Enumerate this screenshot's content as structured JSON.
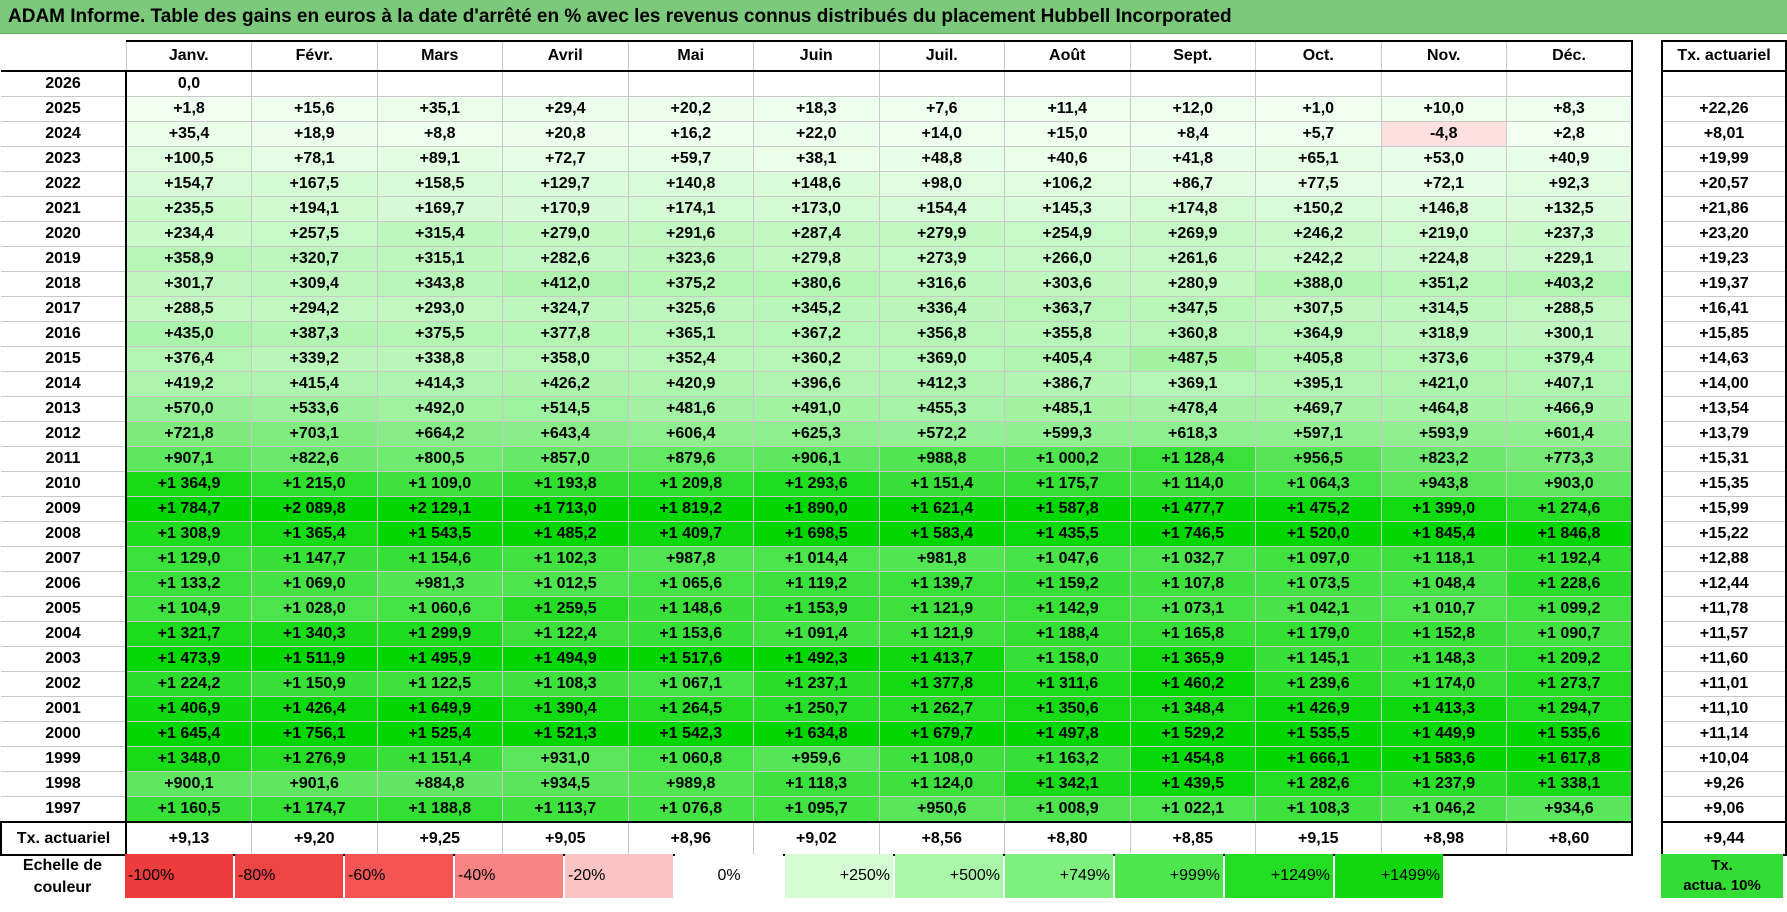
{
  "title": "ADAM Informe. Table des gains en euros à la date d'arrêté en % avec les revenus connus distribués du placement Hubbell Incorporated",
  "months": [
    "Janv.",
    "Févr.",
    "Mars",
    "Avril",
    "Mai",
    "Juin",
    "Juil.",
    "Août",
    "Sept.",
    "Oct.",
    "Nov.",
    "Déc."
  ],
  "tx_header": "Tx. actuariel",
  "rows": [
    {
      "year": "2026",
      "values": [
        "0,0",
        "",
        "",
        "",
        "",
        "",
        "",
        "",
        "",
        "",
        "",
        ""
      ],
      "tx": ""
    },
    {
      "year": "2025",
      "values": [
        "+1,8",
        "+15,6",
        "+35,1",
        "+29,4",
        "+20,2",
        "+18,3",
        "+7,6",
        "+11,4",
        "+12,0",
        "+1,0",
        "+10,0",
        "+8,3"
      ],
      "tx": "+22,26"
    },
    {
      "year": "2024",
      "values": [
        "+35,4",
        "+18,9",
        "+8,8",
        "+20,8",
        "+16,2",
        "+22,0",
        "+14,0",
        "+15,0",
        "+8,4",
        "+5,7",
        "-4,8",
        "+2,8"
      ],
      "tx": "+8,01"
    },
    {
      "year": "2023",
      "values": [
        "+100,5",
        "+78,1",
        "+89,1",
        "+72,7",
        "+59,7",
        "+38,1",
        "+48,8",
        "+40,6",
        "+41,8",
        "+65,1",
        "+53,0",
        "+40,9"
      ],
      "tx": "+19,99"
    },
    {
      "year": "2022",
      "values": [
        "+154,7",
        "+167,5",
        "+158,5",
        "+129,7",
        "+140,8",
        "+148,6",
        "+98,0",
        "+106,2",
        "+86,7",
        "+77,5",
        "+72,1",
        "+92,3"
      ],
      "tx": "+20,57"
    },
    {
      "year": "2021",
      "values": [
        "+235,5",
        "+194,1",
        "+169,7",
        "+170,9",
        "+174,1",
        "+173,0",
        "+154,4",
        "+145,3",
        "+174,8",
        "+150,2",
        "+146,8",
        "+132,5"
      ],
      "tx": "+21,86"
    },
    {
      "year": "2020",
      "values": [
        "+234,4",
        "+257,5",
        "+315,4",
        "+279,0",
        "+291,6",
        "+287,4",
        "+279,9",
        "+254,9",
        "+269,9",
        "+246,2",
        "+219,0",
        "+237,3"
      ],
      "tx": "+23,20"
    },
    {
      "year": "2019",
      "values": [
        "+358,9",
        "+320,7",
        "+315,1",
        "+282,6",
        "+323,6",
        "+279,8",
        "+273,9",
        "+266,0",
        "+261,6",
        "+242,2",
        "+224,8",
        "+229,1"
      ],
      "tx": "+19,23"
    },
    {
      "year": "2018",
      "values": [
        "+301,7",
        "+309,4",
        "+343,8",
        "+412,0",
        "+375,2",
        "+380,6",
        "+316,6",
        "+303,6",
        "+280,9",
        "+388,0",
        "+351,2",
        "+403,2"
      ],
      "tx": "+19,37"
    },
    {
      "year": "2017",
      "values": [
        "+288,5",
        "+294,2",
        "+293,0",
        "+324,7",
        "+325,6",
        "+345,2",
        "+336,4",
        "+363,7",
        "+347,5",
        "+307,5",
        "+314,5",
        "+288,5"
      ],
      "tx": "+16,41"
    },
    {
      "year": "2016",
      "values": [
        "+435,0",
        "+387,3",
        "+375,5",
        "+377,8",
        "+365,1",
        "+367,2",
        "+356,8",
        "+355,8",
        "+360,8",
        "+364,9",
        "+318,9",
        "+300,1"
      ],
      "tx": "+15,85"
    },
    {
      "year": "2015",
      "values": [
        "+376,4",
        "+339,2",
        "+338,8",
        "+358,0",
        "+352,4",
        "+360,2",
        "+369,0",
        "+405,4",
        "+487,5",
        "+405,8",
        "+373,6",
        "+379,4"
      ],
      "tx": "+14,63"
    },
    {
      "year": "2014",
      "values": [
        "+419,2",
        "+415,4",
        "+414,3",
        "+426,2",
        "+420,9",
        "+396,6",
        "+412,3",
        "+386,7",
        "+369,1",
        "+395,1",
        "+421,0",
        "+407,1"
      ],
      "tx": "+14,00"
    },
    {
      "year": "2013",
      "values": [
        "+570,0",
        "+533,6",
        "+492,0",
        "+514,5",
        "+481,6",
        "+491,0",
        "+455,3",
        "+485,1",
        "+478,4",
        "+469,7",
        "+464,8",
        "+466,9"
      ],
      "tx": "+13,54"
    },
    {
      "year": "2012",
      "values": [
        "+721,8",
        "+703,1",
        "+664,2",
        "+643,4",
        "+606,4",
        "+625,3",
        "+572,2",
        "+599,3",
        "+618,3",
        "+597,1",
        "+593,9",
        "+601,4"
      ],
      "tx": "+13,79"
    },
    {
      "year": "2011",
      "values": [
        "+907,1",
        "+822,6",
        "+800,5",
        "+857,0",
        "+879,6",
        "+906,1",
        "+988,8",
        "+1 000,2",
        "+1 128,4",
        "+956,5",
        "+823,2",
        "+773,3"
      ],
      "tx": "+15,31"
    },
    {
      "year": "2010",
      "values": [
        "+1 364,9",
        "+1 215,0",
        "+1 109,0",
        "+1 193,8",
        "+1 209,8",
        "+1 293,6",
        "+1 151,4",
        "+1 175,7",
        "+1 114,0",
        "+1 064,3",
        "+943,8",
        "+903,0"
      ],
      "tx": "+15,35"
    },
    {
      "year": "2009",
      "values": [
        "+1 784,7",
        "+2 089,8",
        "+2 129,1",
        "+1 713,0",
        "+1 819,2",
        "+1 890,0",
        "+1 621,4",
        "+1 587,8",
        "+1 477,7",
        "+1 475,2",
        "+1 399,0",
        "+1 274,6"
      ],
      "tx": "+15,99"
    },
    {
      "year": "2008",
      "values": [
        "+1 308,9",
        "+1 365,4",
        "+1 543,5",
        "+1 485,2",
        "+1 409,7",
        "+1 698,5",
        "+1 583,4",
        "+1 435,5",
        "+1 746,5",
        "+1 520,0",
        "+1 845,4",
        "+1 846,8"
      ],
      "tx": "+15,22"
    },
    {
      "year": "2007",
      "values": [
        "+1 129,0",
        "+1 147,7",
        "+1 154,6",
        "+1 102,3",
        "+987,8",
        "+1 014,4",
        "+981,8",
        "+1 047,6",
        "+1 032,7",
        "+1 097,0",
        "+1 118,1",
        "+1 192,4"
      ],
      "tx": "+12,88"
    },
    {
      "year": "2006",
      "values": [
        "+1 133,2",
        "+1 069,0",
        "+981,3",
        "+1 012,5",
        "+1 065,6",
        "+1 119,2",
        "+1 139,7",
        "+1 159,2",
        "+1 107,8",
        "+1 073,5",
        "+1 048,4",
        "+1 228,6"
      ],
      "tx": "+12,44"
    },
    {
      "year": "2005",
      "values": [
        "+1 104,9",
        "+1 028,0",
        "+1 060,6",
        "+1 259,5",
        "+1 148,6",
        "+1 153,9",
        "+1 121,9",
        "+1 142,9",
        "+1 073,1",
        "+1 042,1",
        "+1 010,7",
        "+1 099,2"
      ],
      "tx": "+11,78"
    },
    {
      "year": "2004",
      "values": [
        "+1 321,7",
        "+1 340,3",
        "+1 299,9",
        "+1 122,4",
        "+1 153,6",
        "+1 091,4",
        "+1 121,9",
        "+1 188,4",
        "+1 165,8",
        "+1 179,0",
        "+1 152,8",
        "+1 090,7"
      ],
      "tx": "+11,57"
    },
    {
      "year": "2003",
      "values": [
        "+1 473,9",
        "+1 511,9",
        "+1 495,9",
        "+1 494,9",
        "+1 517,6",
        "+1 492,3",
        "+1 413,7",
        "+1 158,0",
        "+1 365,9",
        "+1 145,1",
        "+1 148,3",
        "+1 209,2"
      ],
      "tx": "+11,60"
    },
    {
      "year": "2002",
      "values": [
        "+1 224,2",
        "+1 150,9",
        "+1 122,5",
        "+1 108,3",
        "+1 067,1",
        "+1 237,1",
        "+1 377,8",
        "+1 311,6",
        "+1 460,2",
        "+1 239,6",
        "+1 174,0",
        "+1 273,7"
      ],
      "tx": "+11,01"
    },
    {
      "year": "2001",
      "values": [
        "+1 406,9",
        "+1 426,4",
        "+1 649,9",
        "+1 390,4",
        "+1 264,5",
        "+1 250,7",
        "+1 262,7",
        "+1 350,6",
        "+1 348,4",
        "+1 426,9",
        "+1 413,3",
        "+1 294,7"
      ],
      "tx": "+11,10"
    },
    {
      "year": "2000",
      "values": [
        "+1 645,4",
        "+1 756,1",
        "+1 525,4",
        "+1 521,3",
        "+1 542,3",
        "+1 634,8",
        "+1 679,7",
        "+1 497,8",
        "+1 529,2",
        "+1 535,5",
        "+1 449,9",
        "+1 535,6"
      ],
      "tx": "+11,14"
    },
    {
      "year": "1999",
      "values": [
        "+1 348,0",
        "+1 276,9",
        "+1 151,4",
        "+931,0",
        "+1 060,8",
        "+959,6",
        "+1 108,0",
        "+1 163,2",
        "+1 454,8",
        "+1 666,1",
        "+1 583,6",
        "+1 617,8"
      ],
      "tx": "+10,04"
    },
    {
      "year": "1998",
      "values": [
        "+900,1",
        "+901,6",
        "+884,8",
        "+934,5",
        "+989,8",
        "+1 118,3",
        "+1 124,0",
        "+1 342,1",
        "+1 439,5",
        "+1 282,6",
        "+1 237,9",
        "+1 338,1"
      ],
      "tx": "+9,26"
    },
    {
      "year": "1997",
      "values": [
        "+1 160,5",
        "+1 174,7",
        "+1 188,8",
        "+1 113,7",
        "+1 076,8",
        "+1 095,7",
        "+950,6",
        "+1 008,9",
        "+1 022,1",
        "+1 108,3",
        "+1 046,2",
        "+934,6"
      ],
      "tx": "+9,06"
    }
  ],
  "footer": {
    "label": "Tx. actuariel",
    "values": [
      "+9,13",
      "+9,20",
      "+9,25",
      "+9,05",
      "+8,96",
      "+9,02",
      "+8,56",
      "+8,80",
      "+8,85",
      "+9,15",
      "+8,98",
      "+8,60"
    ],
    "tx": "+9,44"
  },
  "legend": {
    "label_line1": "Echelle de",
    "label_line2": "couleur",
    "swatches": [
      {
        "text": "-100%",
        "color": "#ee3b3b",
        "align": "left"
      },
      {
        "text": "-80%",
        "color": "#f04545",
        "align": "left"
      },
      {
        "text": "-60%",
        "color": "#f35555",
        "align": "left"
      },
      {
        "text": "-40%",
        "color": "#f78383",
        "align": "left"
      },
      {
        "text": "-20%",
        "color": "#fbc3c3",
        "align": "left"
      },
      {
        "text": "0%",
        "color": "#ffffff",
        "align": "center"
      },
      {
        "text": "+250%",
        "color": "#d4fdd4",
        "align": "right"
      },
      {
        "text": "+500%",
        "color": "#a9f7a9",
        "align": "right"
      },
      {
        "text": "+749%",
        "color": "#7ef07e",
        "align": "right"
      },
      {
        "text": "+999%",
        "color": "#4ee64e",
        "align": "right"
      },
      {
        "text": "+1249%",
        "color": "#22dd22",
        "align": "right"
      },
      {
        "text": "+1499%",
        "color": "#11d811",
        "align": "right"
      }
    ],
    "tx_line1": "Tx.",
    "tx_line2": "actua. 10%"
  }
}
